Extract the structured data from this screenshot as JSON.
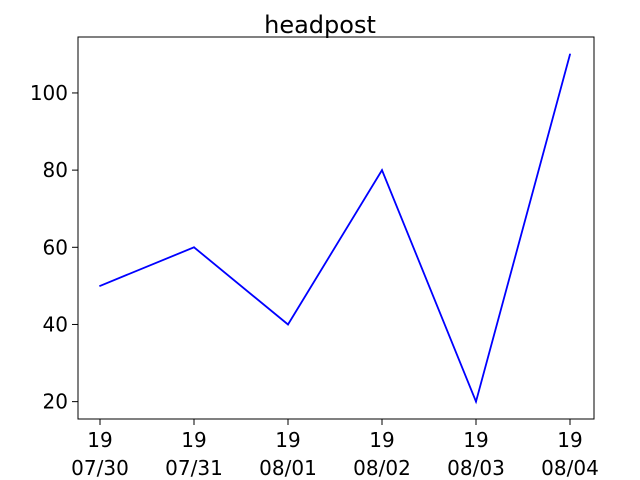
{
  "chart_data": {
    "type": "line",
    "title": "headpost",
    "xlabel": "",
    "ylabel": "",
    "x": [
      [
        "19",
        "07/30"
      ],
      [
        "19",
        "07/31"
      ],
      [
        "19",
        "08/01"
      ],
      [
        "19",
        "08/02"
      ],
      [
        "19",
        "08/03"
      ],
      [
        "19",
        "08/04"
      ]
    ],
    "series": [
      {
        "values": [
          50,
          60,
          40,
          80,
          20,
          110
        ],
        "color": "#0000ff"
      }
    ],
    "ylim": [
      15.5,
      114.5
    ],
    "yticks": [
      20,
      40,
      60,
      80,
      100
    ],
    "grid": false,
    "legend": "none"
  }
}
